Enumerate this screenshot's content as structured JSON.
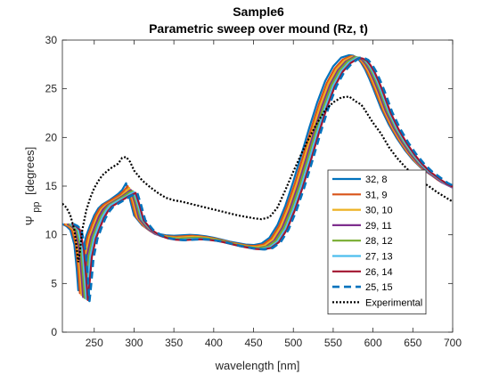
{
  "chart_data": {
    "type": "line",
    "title": "Sample6",
    "subtitle": "Parametric sweep over mound (Rz, t)",
    "xlabel": "wavelength [nm]",
    "ylabel_main": "Ψ",
    "ylabel_sub": "pp",
    "ylabel_unit": "[degrees]",
    "xlim": [
      210,
      700
    ],
    "ylim": [
      0,
      30
    ],
    "xticks": [
      250,
      300,
      350,
      400,
      450,
      500,
      550,
      600,
      650,
      700
    ],
    "yticks": [
      0,
      5,
      10,
      15,
      20,
      25,
      30
    ],
    "grid": false,
    "legend_position": "bottom-right",
    "x": [
      210,
      215,
      220,
      225,
      228,
      230,
      232,
      235,
      240,
      245,
      250,
      255,
      260,
      270,
      280,
      285,
      290,
      295,
      300,
      310,
      320,
      330,
      340,
      350,
      360,
      370,
      380,
      390,
      400,
      410,
      420,
      430,
      440,
      450,
      460,
      470,
      480,
      490,
      500,
      510,
      520,
      530,
      540,
      550,
      560,
      570,
      575,
      580,
      585,
      590,
      595,
      600,
      610,
      620,
      630,
      640,
      650,
      660,
      670,
      680,
      690,
      700
    ],
    "series": [
      {
        "name": "32, 8",
        "color": "#0072bd",
        "dashed": false,
        "xshift": 0,
        "y": [
          11.1,
          10.9,
          10.5,
          9.0,
          6.5,
          4.3,
          5.8,
          8.2,
          9.9,
          11.0,
          12.0,
          12.7,
          13.1,
          13.6,
          14.2,
          14.6,
          15.3,
          13.6,
          12.0,
          11.0,
          10.4,
          10.1,
          9.95,
          9.9,
          9.95,
          10.0,
          9.95,
          9.85,
          9.7,
          9.5,
          9.3,
          9.15,
          9.0,
          8.95,
          9.1,
          9.7,
          11.0,
          13.0,
          15.5,
          18.2,
          21.0,
          23.6,
          25.8,
          27.3,
          28.2,
          28.45,
          28.4,
          28.2,
          27.7,
          27.0,
          26.1,
          25.1,
          23.0,
          21.3,
          19.9,
          18.7,
          17.7,
          16.9,
          16.3,
          15.8,
          15.4,
          15.0
        ]
      },
      {
        "name": "31, 9",
        "color": "#d95319",
        "dashed": false,
        "xshift": 2,
        "y": [
          11.1,
          10.9,
          10.5,
          8.9,
          6.3,
          4.0,
          5.6,
          8.1,
          9.9,
          11.0,
          12.0,
          12.7,
          13.1,
          13.6,
          14.1,
          14.5,
          15.0,
          13.5,
          11.9,
          10.9,
          10.3,
          10.0,
          9.85,
          9.8,
          9.85,
          9.9,
          9.85,
          9.75,
          9.6,
          9.4,
          9.2,
          9.05,
          8.9,
          8.85,
          9.0,
          9.6,
          10.9,
          12.9,
          15.3,
          18.0,
          20.8,
          23.4,
          25.6,
          27.1,
          28.0,
          28.35,
          28.3,
          28.1,
          27.6,
          26.9,
          26.0,
          25.0,
          22.9,
          21.2,
          19.8,
          18.6,
          17.6,
          16.8,
          16.2,
          15.6,
          15.2,
          14.8
        ]
      },
      {
        "name": "30, 10",
        "color": "#edb120",
        "dashed": false,
        "xshift": 4,
        "y": [
          11.1,
          10.9,
          10.5,
          8.8,
          6.1,
          3.8,
          5.4,
          8.0,
          9.8,
          10.9,
          11.9,
          12.6,
          13.0,
          13.5,
          14.0,
          14.4,
          14.8,
          13.4,
          11.8,
          10.8,
          10.2,
          9.9,
          9.75,
          9.7,
          9.75,
          9.8,
          9.75,
          9.65,
          9.5,
          9.3,
          9.1,
          8.95,
          8.8,
          8.75,
          8.9,
          9.5,
          10.8,
          12.8,
          15.2,
          17.9,
          20.7,
          23.3,
          25.5,
          27.0,
          27.9,
          28.3,
          28.25,
          28.05,
          27.55,
          26.85,
          25.95,
          24.95,
          22.8,
          21.1,
          19.7,
          18.5,
          17.5,
          16.7,
          16.1,
          15.5,
          15.1,
          14.7
        ]
      },
      {
        "name": "29, 11",
        "color": "#7e2f8e",
        "dashed": false,
        "xshift": 6,
        "y": [
          11.1,
          10.9,
          10.5,
          8.7,
          5.9,
          3.6,
          5.2,
          7.9,
          9.8,
          10.9,
          11.9,
          12.6,
          13.0,
          13.5,
          14.0,
          14.3,
          14.6,
          13.3,
          11.7,
          10.7,
          10.1,
          9.8,
          9.65,
          9.6,
          9.65,
          9.7,
          9.65,
          9.55,
          9.4,
          9.2,
          9.0,
          8.85,
          8.7,
          8.65,
          8.8,
          9.4,
          10.7,
          12.7,
          15.1,
          17.8,
          20.6,
          23.2,
          25.4,
          26.9,
          27.8,
          28.25,
          28.2,
          28.0,
          27.5,
          26.8,
          25.9,
          24.9,
          22.7,
          21.0,
          19.6,
          18.4,
          17.4,
          16.6,
          16.0,
          15.4,
          15.0,
          14.6
        ]
      },
      {
        "name": "28, 12",
        "color": "#77ac30",
        "dashed": false,
        "xshift": 8,
        "y": [
          11.1,
          10.9,
          10.5,
          8.6,
          5.7,
          3.5,
          5.1,
          7.8,
          9.7,
          10.8,
          11.8,
          12.5,
          13.0,
          13.5,
          14.0,
          14.3,
          14.5,
          13.2,
          11.7,
          10.7,
          10.1,
          9.8,
          9.65,
          9.6,
          9.65,
          9.7,
          9.65,
          9.55,
          9.4,
          9.2,
          9.0,
          8.85,
          8.7,
          8.65,
          8.8,
          9.4,
          10.7,
          12.7,
          15.1,
          17.8,
          20.6,
          23.2,
          25.4,
          26.9,
          27.8,
          28.25,
          28.2,
          28.0,
          27.5,
          26.8,
          25.9,
          24.9,
          22.7,
          21.0,
          19.6,
          18.4,
          17.4,
          16.6,
          16.0,
          15.4,
          15.0,
          14.6
        ]
      },
      {
        "name": "27, 13",
        "color": "#4dbeee",
        "dashed": false,
        "xshift": 10,
        "y": [
          11.1,
          10.9,
          10.5,
          8.5,
          5.6,
          3.4,
          5.0,
          7.8,
          9.7,
          10.8,
          11.8,
          12.5,
          13.0,
          13.5,
          13.9,
          14.2,
          14.4,
          13.1,
          11.6,
          10.6,
          10.0,
          9.7,
          9.55,
          9.5,
          9.55,
          9.6,
          9.55,
          9.45,
          9.3,
          9.1,
          8.9,
          8.75,
          8.6,
          8.55,
          8.7,
          9.3,
          10.6,
          12.6,
          15.0,
          17.7,
          20.5,
          23.1,
          25.3,
          26.8,
          27.7,
          28.2,
          28.15,
          27.95,
          27.45,
          26.75,
          25.85,
          24.85,
          22.6,
          20.9,
          19.5,
          18.3,
          17.3,
          16.5,
          15.9,
          15.3,
          14.9,
          14.5
        ]
      },
      {
        "name": "26, 14",
        "color": "#a2142f",
        "dashed": false,
        "xshift": 12,
        "y": [
          11.1,
          10.9,
          10.5,
          8.5,
          5.5,
          3.3,
          4.9,
          7.7,
          9.6,
          10.7,
          11.7,
          12.4,
          12.9,
          13.4,
          13.9,
          14.1,
          14.3,
          13.0,
          11.5,
          10.5,
          9.95,
          9.65,
          9.5,
          9.45,
          9.5,
          9.55,
          9.5,
          9.4,
          9.25,
          9.05,
          8.85,
          8.7,
          8.55,
          8.5,
          8.65,
          9.25,
          10.55,
          12.55,
          14.95,
          17.65,
          20.45,
          23.05,
          25.25,
          26.75,
          27.65,
          28.15,
          28.1,
          27.9,
          27.4,
          26.7,
          25.8,
          24.8,
          22.55,
          20.85,
          19.45,
          18.25,
          17.25,
          16.45,
          15.85,
          15.25,
          14.85,
          14.45
        ]
      },
      {
        "name": "25, 15",
        "color": "#0072bd",
        "dashed": true,
        "xshift": 14,
        "y": [
          11.1,
          10.9,
          10.5,
          8.4,
          5.4,
          3.2,
          4.8,
          7.6,
          9.6,
          10.7,
          11.7,
          12.4,
          12.9,
          13.4,
          13.9,
          14.1,
          14.3,
          13.0,
          11.5,
          10.5,
          9.95,
          9.65,
          9.5,
          9.45,
          9.5,
          9.55,
          9.5,
          9.4,
          9.25,
          9.05,
          8.85,
          8.7,
          8.55,
          8.5,
          8.65,
          9.25,
          10.55,
          12.55,
          14.95,
          17.65,
          20.45,
          23.05,
          25.25,
          26.75,
          27.65,
          28.2,
          28.15,
          27.95,
          27.45,
          26.75,
          25.85,
          24.85,
          22.6,
          20.9,
          19.5,
          18.3,
          17.3,
          16.5,
          15.9,
          15.3,
          14.9,
          14.5
        ]
      }
    ],
    "experimental": {
      "name": "Experimental",
      "color": "#000000",
      "x": [
        210,
        215,
        220,
        225,
        228,
        230,
        232,
        235,
        240,
        245,
        250,
        255,
        260,
        270,
        280,
        285,
        290,
        295,
        300,
        310,
        320,
        330,
        340,
        350,
        360,
        370,
        380,
        390,
        400,
        410,
        420,
        430,
        440,
        450,
        460,
        470,
        480,
        490,
        500,
        510,
        520,
        530,
        540,
        550,
        560,
        570,
        575,
        580,
        585,
        590,
        600,
        610,
        620,
        630,
        640,
        650,
        660,
        670,
        680,
        690,
        700
      ],
      "y": [
        13.2,
        12.8,
        12.0,
        10.5,
        8.7,
        7.2,
        8.3,
        10.5,
        12.5,
        13.8,
        14.8,
        15.5,
        16.1,
        16.8,
        17.3,
        17.9,
        18.0,
        17.5,
        16.6,
        15.6,
        14.9,
        14.3,
        13.8,
        13.55,
        13.4,
        13.2,
        13.0,
        12.8,
        12.6,
        12.4,
        12.2,
        12.0,
        11.85,
        11.7,
        11.6,
        11.8,
        12.8,
        14.6,
        16.5,
        18.3,
        20.0,
        21.5,
        22.8,
        23.6,
        24.1,
        24.2,
        23.9,
        23.6,
        23.4,
        22.8,
        21.5,
        20.4,
        19.0,
        17.9,
        17.0,
        16.2,
        15.5,
        15.0,
        14.4,
        13.9,
        13.4
      ]
    }
  }
}
